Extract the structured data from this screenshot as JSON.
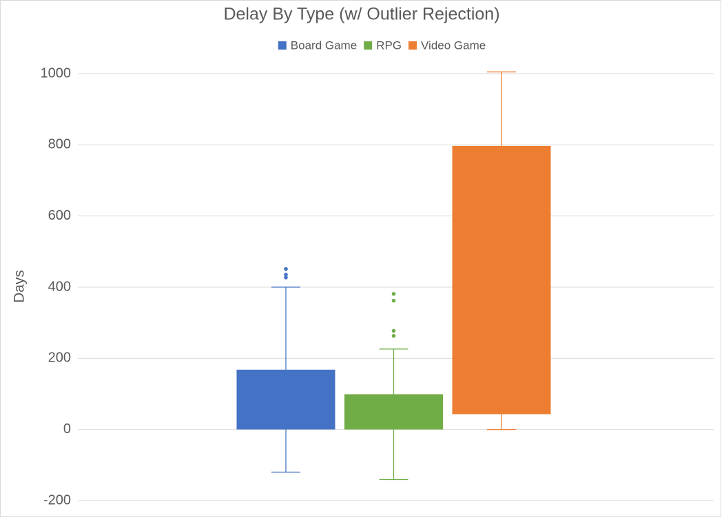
{
  "chart_data": {
    "type": "box",
    "title": "Delay By Type (w/ Outlier Rejection)",
    "y_label": "Days",
    "ylim": [
      -200,
      1000
    ],
    "yticks": [
      -200,
      0,
      200,
      400,
      600,
      800,
      1000
    ],
    "grid": true,
    "legend": "top",
    "series": [
      {
        "name": "Board Game",
        "color": "#4472c4",
        "whisker_low": -120,
        "q1": 0,
        "q3": 168,
        "whisker_high": 400,
        "outliers": [
          451,
          435,
          427
        ]
      },
      {
        "name": "RPG",
        "color": "#70ad47",
        "whisker_low": -141,
        "q1": 0,
        "q3": 99,
        "whisker_high": 226,
        "outliers": [
          381,
          362,
          277,
          263
        ]
      },
      {
        "name": "Video Game",
        "color": "#ed7d31",
        "whisker_low": 0,
        "q1": 43,
        "q3": 797,
        "whisker_high": 1005,
        "outliers": []
      }
    ]
  }
}
